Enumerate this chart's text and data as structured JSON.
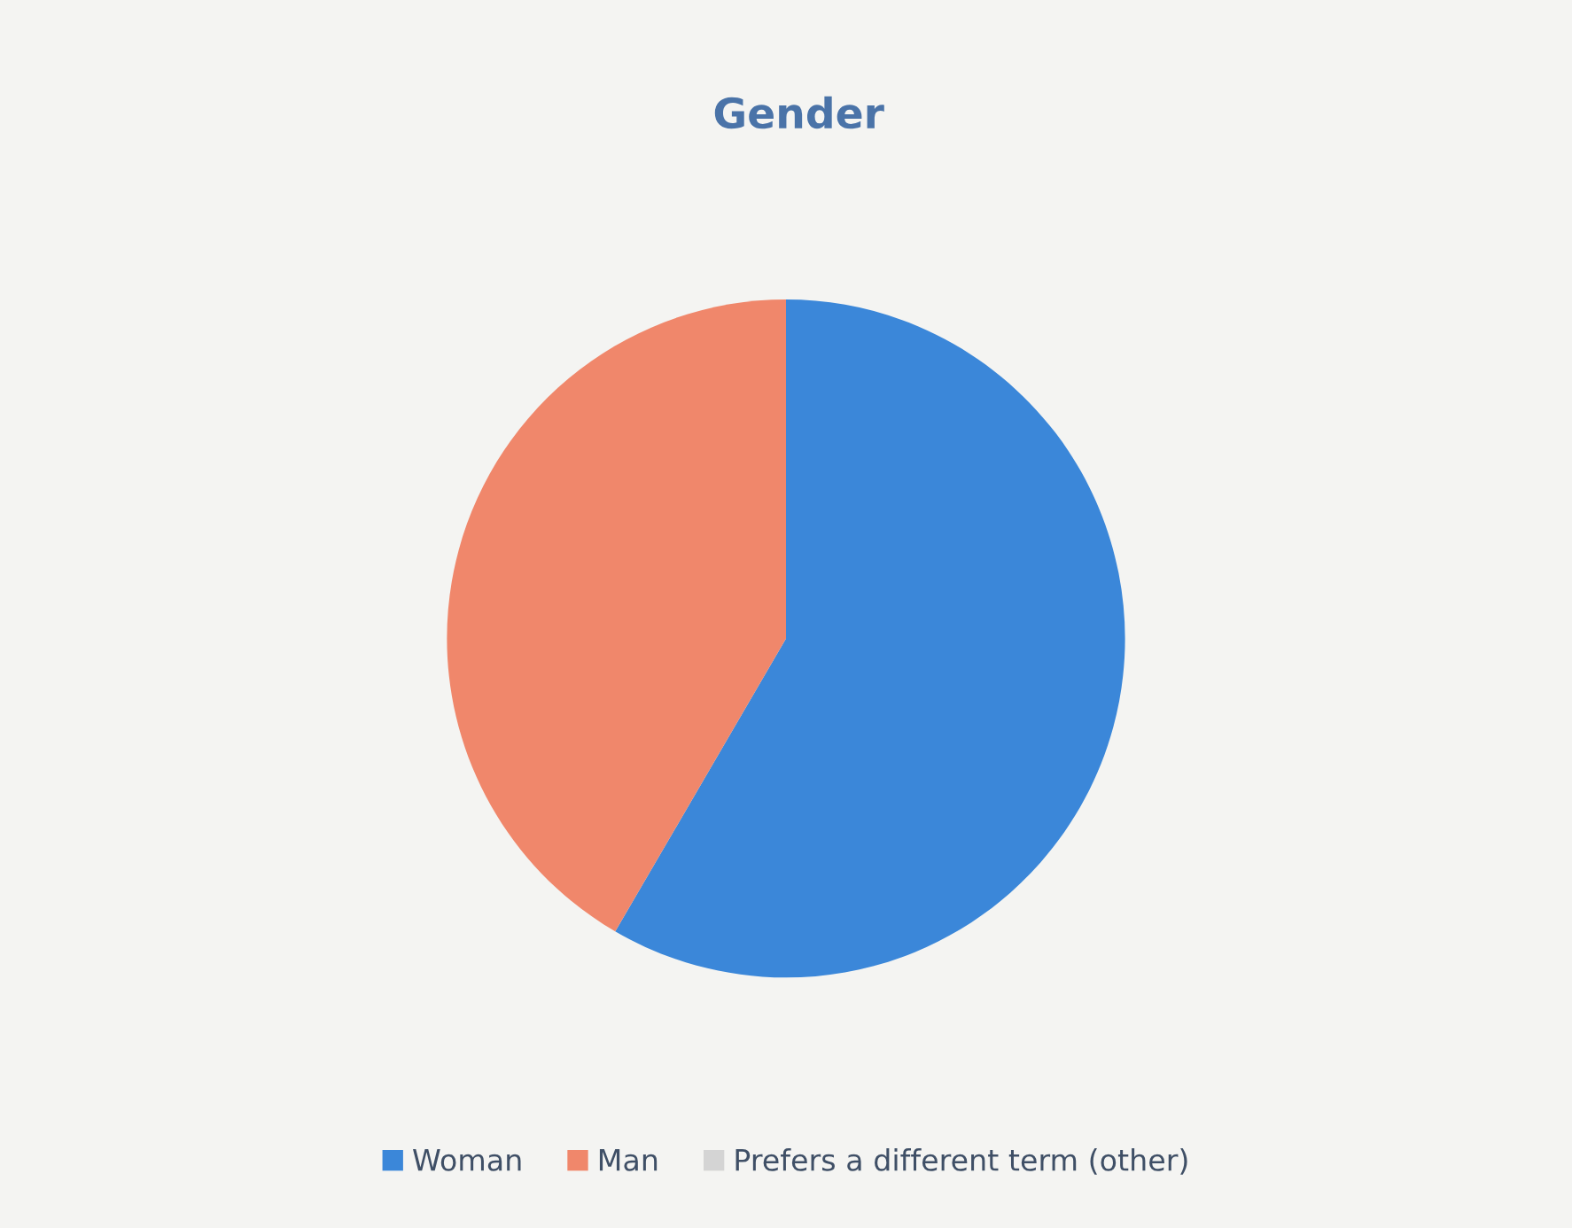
{
  "chart_data": {
    "type": "pie",
    "title": "Gender",
    "categories": [
      "Woman",
      "Man",
      "Prefers a different term (other)"
    ],
    "values": [
      58.4,
      41.6,
      0
    ],
    "colors": [
      "#3b87d9",
      "#f0876b",
      "#d4d4d4"
    ],
    "legend": "bottom"
  }
}
